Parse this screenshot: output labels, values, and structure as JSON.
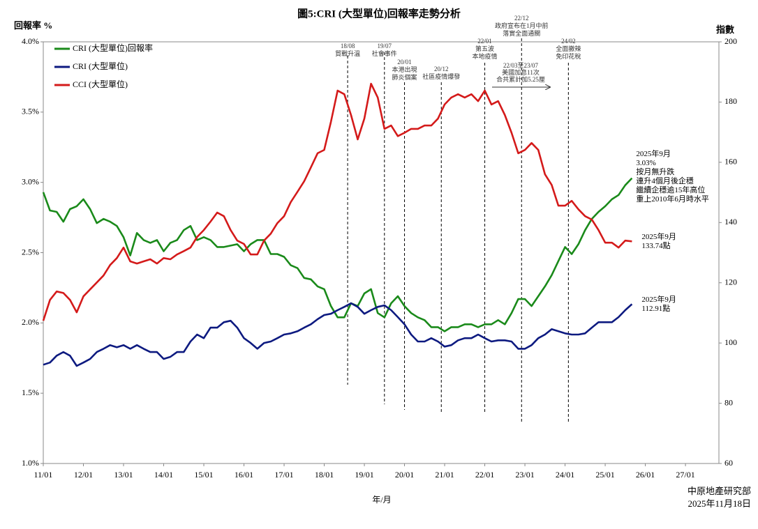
{
  "chart_data": {
    "type": "line",
    "title": "圖5:CRI (大型單位)回報率走勢分析",
    "y_label": "回報率 %",
    "y2_label": "指數",
    "x_label": "年/月",
    "legend": "upper left",
    "grid": false,
    "x": [
      "2011-01",
      "2011-03",
      "2011-05",
      "2011-07",
      "2011-09",
      "2011-11",
      "2012-01",
      "2012-03",
      "2012-05",
      "2012-07",
      "2012-09",
      "2012-11",
      "2013-01",
      "2013-03",
      "2013-05",
      "2013-07",
      "2013-09",
      "2013-11",
      "2014-01",
      "2014-03",
      "2014-05",
      "2014-07",
      "2014-09",
      "2014-11",
      "2015-01",
      "2015-03",
      "2015-05",
      "2015-07",
      "2015-09",
      "2015-11",
      "2016-01",
      "2016-03",
      "2016-05",
      "2016-07",
      "2016-09",
      "2016-11",
      "2017-01",
      "2017-03",
      "2017-05",
      "2017-07",
      "2017-09",
      "2017-11",
      "2018-01",
      "2018-03",
      "2018-05",
      "2018-07",
      "2018-09",
      "2018-11",
      "2019-01",
      "2019-03",
      "2019-05",
      "2019-07",
      "2019-09",
      "2019-11",
      "2020-01",
      "2020-03",
      "2020-05",
      "2020-07",
      "2020-09",
      "2020-11",
      "2021-01",
      "2021-03",
      "2021-05",
      "2021-07",
      "2021-09",
      "2021-11",
      "2022-01",
      "2022-03",
      "2022-05",
      "2022-07",
      "2022-09",
      "2022-11",
      "2023-01",
      "2023-03",
      "2023-05",
      "2023-07",
      "2023-09",
      "2023-11",
      "2024-01",
      "2024-03",
      "2024-05",
      "2024-07",
      "2024-09",
      "2024-11",
      "2025-01",
      "2025-03",
      "2025-05",
      "2025-07",
      "2025-09"
    ],
    "xlim": [
      "2011-01",
      "2027-11"
    ],
    "xticks": [
      {
        "value": "2011-01",
        "label": "11/01"
      },
      {
        "value": "2012-01",
        "label": "12/01"
      },
      {
        "value": "2013-01",
        "label": "13/01"
      },
      {
        "value": "2014-01",
        "label": "14/01"
      },
      {
        "value": "2015-01",
        "label": "15/01"
      },
      {
        "value": "2016-01",
        "label": "16/01"
      },
      {
        "value": "2017-01",
        "label": "17/01"
      },
      {
        "value": "2018-01",
        "label": "18/01"
      },
      {
        "value": "2019-01",
        "label": "19/01"
      },
      {
        "value": "2020-01",
        "label": "20/01"
      },
      {
        "value": "2021-01",
        "label": "21/01"
      },
      {
        "value": "2022-01",
        "label": "22/01"
      },
      {
        "value": "2023-01",
        "label": "23/01"
      },
      {
        "value": "2024-01",
        "label": "24/01"
      },
      {
        "value": "2025-01",
        "label": "25/01"
      },
      {
        "value": "2026-01",
        "label": "26/01"
      },
      {
        "value": "2027-01",
        "label": "27/01"
      }
    ],
    "ylim": [
      1.0,
      4.0
    ],
    "yticks": [
      {
        "value": 1.0,
        "label": "1.0%"
      },
      {
        "value": 1.5,
        "label": "1.5%"
      },
      {
        "value": 2.0,
        "label": "2.0%"
      },
      {
        "value": 2.5,
        "label": "2.5%"
      },
      {
        "value": 3.0,
        "label": "3.0%"
      },
      {
        "value": 3.5,
        "label": "3.5%"
      },
      {
        "value": 4.0,
        "label": "4.0%"
      }
    ],
    "y2lim": [
      60,
      200
    ],
    "y2ticks": [
      60,
      80,
      100,
      120,
      140,
      160,
      180,
      200
    ],
    "series": [
      {
        "name": "CRI (大型單位)回報率",
        "color": "#1a8a1a",
        "axis": "y",
        "values": [
          2.93,
          2.8,
          2.79,
          2.72,
          2.81,
          2.83,
          2.88,
          2.81,
          2.71,
          2.74,
          2.72,
          2.69,
          2.61,
          2.48,
          2.64,
          2.59,
          2.57,
          2.59,
          2.51,
          2.57,
          2.59,
          2.66,
          2.69,
          2.59,
          2.61,
          2.59,
          2.54,
          2.54,
          2.55,
          2.56,
          2.51,
          2.56,
          2.59,
          2.59,
          2.49,
          2.49,
          2.47,
          2.41,
          2.39,
          2.32,
          2.31,
          2.26,
          2.24,
          2.12,
          2.04,
          2.04,
          2.14,
          2.12,
          2.21,
          2.24,
          2.07,
          2.04,
          2.14,
          2.19,
          2.12,
          2.07,
          2.04,
          2.02,
          1.97,
          1.97,
          1.94,
          1.97,
          1.97,
          1.99,
          1.99,
          1.97,
          1.99,
          1.99,
          2.02,
          1.99,
          2.07,
          2.17,
          2.17,
          2.12,
          2.19,
          2.26,
          2.34,
          2.44,
          2.54,
          2.49,
          2.56,
          2.66,
          2.74,
          2.79,
          2.83,
          2.88,
          2.91,
          2.98,
          3.03
        ],
        "end_note": [
          "2025年9月",
          "3.03%",
          "按月無升跌",
          "連升4個月後企穩",
          "繼續企穩逾15年高位",
          "重上2010年6月時水平"
        ]
      },
      {
        "name": "CRI (大型單位)",
        "color": "#0d1a80",
        "axis": "y2",
        "values": [
          92.8,
          93.5,
          95.8,
          97.0,
          95.8,
          92.4,
          93.5,
          94.7,
          97.0,
          98.1,
          99.3,
          98.6,
          99.3,
          98.1,
          99.3,
          98.1,
          97.0,
          97.0,
          94.7,
          95.4,
          97.0,
          97.0,
          100.5,
          102.8,
          101.6,
          105.1,
          105.1,
          106.9,
          107.4,
          105.1,
          101.6,
          100.0,
          98.1,
          100.0,
          100.5,
          101.6,
          102.8,
          103.2,
          103.9,
          105.1,
          106.2,
          107.9,
          109.3,
          109.7,
          110.9,
          112.0,
          113.2,
          112.0,
          109.7,
          110.9,
          112.0,
          112.5,
          110.9,
          108.6,
          106.2,
          102.8,
          100.5,
          100.5,
          101.6,
          100.5,
          98.8,
          99.3,
          100.9,
          101.6,
          101.6,
          102.8,
          101.6,
          100.5,
          100.9,
          100.9,
          100.5,
          98.1,
          98.1,
          99.3,
          101.6,
          102.8,
          104.6,
          103.9,
          103.2,
          102.8,
          102.8,
          103.2,
          105.1,
          106.9,
          106.9,
          106.9,
          108.6,
          110.9,
          112.91
        ],
        "end_note": [
          "2025年9月",
          "112.91點"
        ]
      },
      {
        "name": "CCI (大型單位)",
        "color": "#d41a1a",
        "axis": "y2",
        "values": [
          107.4,
          114.3,
          117.1,
          116.6,
          114.3,
          110.2,
          115.5,
          117.8,
          120.1,
          122.4,
          125.9,
          128.2,
          131.7,
          127.1,
          126.4,
          127.1,
          127.8,
          126.4,
          128.2,
          127.8,
          129.4,
          130.5,
          131.7,
          135.2,
          137.5,
          140.3,
          143.3,
          142.1,
          137.5,
          134.0,
          132.9,
          129.4,
          129.4,
          134.0,
          136.3,
          139.8,
          142.1,
          146.8,
          150.2,
          153.7,
          158.3,
          163.0,
          164.1,
          173.4,
          183.8,
          182.6,
          175.7,
          167.6,
          174.5,
          186.1,
          181.5,
          171.1,
          172.2,
          168.7,
          169.8,
          171.1,
          171.1,
          172.2,
          172.2,
          174.5,
          179.2,
          181.5,
          182.6,
          181.5,
          182.6,
          180.3,
          183.8,
          179.2,
          180.3,
          175.7,
          169.8,
          163.0,
          164.1,
          166.4,
          164.1,
          156.0,
          152.5,
          145.6,
          145.6,
          147.2,
          144.4,
          142.1,
          141.0,
          137.5,
          133.3,
          133.3,
          131.7,
          134.0,
          133.74
        ],
        "end_note": [
          "2025年9月",
          "133.74點"
        ]
      }
    ],
    "annotations": [
      {
        "date": "18/08",
        "text": [
          "貿戰升溫"
        ]
      },
      {
        "date": "19/07",
        "text": [
          "社會事件"
        ]
      },
      {
        "date": "20/01",
        "text": [
          "本港出現",
          "肺炎個案"
        ]
      },
      {
        "date": "20/12",
        "text": [
          "社區疫情爆發"
        ]
      },
      {
        "date": "22/01",
        "text": [
          "第五波",
          "本地疫情"
        ]
      },
      {
        "date": "22/12",
        "text": [
          "政府宣布在1月中前",
          "落實全面通關"
        ]
      },
      {
        "date": "24/02",
        "text": [
          "全面撤辣",
          "免印花稅"
        ]
      }
    ],
    "range_note": [
      "22/03至23/07",
      "美國加息11次",
      "合共累計加5.25厘"
    ],
    "source": [
      "中原地產研究部",
      "2025年11月18日"
    ]
  }
}
